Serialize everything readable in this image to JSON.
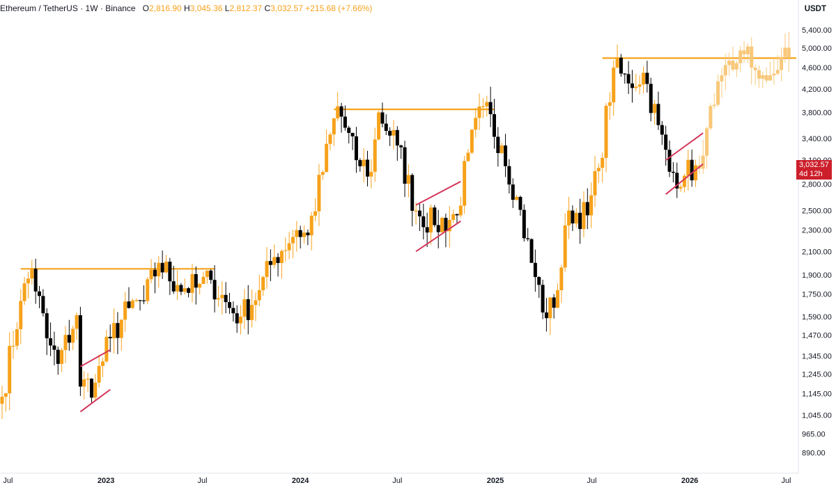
{
  "header": {
    "symbol": "Ethereum / TetherUS",
    "interval": "1W",
    "exchange": "Binance",
    "open_label": "O",
    "open": "2,816.90",
    "high_label": "H",
    "high": "3,045.36",
    "low_label": "L",
    "low": "2,812.37",
    "close_label": "C",
    "close": "3,032.57",
    "change": "+215.68 (+7.66%)"
  },
  "price_tag": {
    "price": "3,032.57",
    "countdown": "4d 12h"
  },
  "colors": {
    "up": "#f7a21b",
    "down": "#000000",
    "projection": "#f8c87a",
    "resistance": "#f7a21b",
    "channel": "#d4365a",
    "price_tag": "#cc1f2b"
  },
  "chart_data": {
    "type": "candlestick",
    "title": "Ethereum / TetherUS · 1W · Binance",
    "ylabel": "USDT",
    "y_scale": "log",
    "ylim": [
      840,
      5750
    ],
    "xlim": [
      "2022-06-20",
      "2026-07-20"
    ],
    "x_ticks": [
      {
        "date": "2022-07-01",
        "label": "Jul"
      },
      {
        "date": "2023-01-01",
        "label": "2023"
      },
      {
        "date": "2023-07-01",
        "label": "Jul"
      },
      {
        "date": "2024-01-01",
        "label": "2024"
      },
      {
        "date": "2024-07-01",
        "label": "Jul"
      },
      {
        "date": "2025-01-01",
        "label": "2025"
      },
      {
        "date": "2025-07-01",
        "label": "Jul"
      },
      {
        "date": "2026-01-01",
        "label": "2026"
      },
      {
        "date": "2026-07-01",
        "label": "Jul"
      }
    ],
    "y_ticks": [
      "5,400.00",
      "5,000.00",
      "4,600.00",
      "4,200.00",
      "3,800.00",
      "3,400.00",
      "3,100.00",
      "2,800.00",
      "2,500.00",
      "2,300.00",
      "2,100.00",
      "1,900.00",
      "1,750.00",
      "1,590.00",
      "1,470.00",
      "1,345.00",
      "1,245.00",
      "1,145.00",
      "1,045.00",
      "965.00",
      "890.00"
    ],
    "last_price": 3032.57,
    "anchors": [
      {
        "date": "2022-06-20",
        "close": 1130
      },
      {
        "date": "2022-07-25",
        "close": 1700
      },
      {
        "date": "2022-08-15",
        "close": 1950
      },
      {
        "date": "2022-09-12",
        "close": 1450
      },
      {
        "date": "2022-10-03",
        "close": 1300
      },
      {
        "date": "2022-11-07",
        "close": 1600
      },
      {
        "date": "2022-11-14",
        "close": 1180
      },
      {
        "date": "2022-12-12",
        "close": 1200
      },
      {
        "date": "2023-01-09",
        "close": 1450
      },
      {
        "date": "2023-02-13",
        "close": 1650
      },
      {
        "date": "2023-03-13",
        "close": 1700
      },
      {
        "date": "2023-04-10",
        "close": 2000
      },
      {
        "date": "2023-05-15",
        "close": 1820
      },
      {
        "date": "2023-06-19",
        "close": 1800
      },
      {
        "date": "2023-07-17",
        "close": 1860
      },
      {
        "date": "2023-08-21",
        "close": 1650
      },
      {
        "date": "2023-09-11",
        "close": 1590
      },
      {
        "date": "2023-10-16",
        "close": 1780
      },
      {
        "date": "2023-11-13",
        "close": 2050
      },
      {
        "date": "2023-12-25",
        "close": 2300
      },
      {
        "date": "2024-01-15",
        "close": 2250
      },
      {
        "date": "2024-03-11",
        "close": 3900
      },
      {
        "date": "2024-04-15",
        "close": 3100
      },
      {
        "date": "2024-05-13",
        "close": 2950
      },
      {
        "date": "2024-05-27",
        "close": 3800
      },
      {
        "date": "2024-07-01",
        "close": 3300
      },
      {
        "date": "2024-08-05",
        "close": 2500
      },
      {
        "date": "2024-09-09",
        "close": 2350
      },
      {
        "date": "2024-10-21",
        "close": 2450
      },
      {
        "date": "2024-11-11",
        "close": 3200
      },
      {
        "date": "2024-12-09",
        "close": 3900
      },
      {
        "date": "2025-01-13",
        "close": 3300
      },
      {
        "date": "2025-02-10",
        "close": 2650
      },
      {
        "date": "2025-03-10",
        "close": 2000
      },
      {
        "date": "2025-04-07",
        "close": 1580
      },
      {
        "date": "2025-04-28",
        "close": 1780
      },
      {
        "date": "2025-05-19",
        "close": 2500
      },
      {
        "date": "2025-06-23",
        "close": 2450
      },
      {
        "date": "2025-07-14",
        "close": 3000
      },
      {
        "date": "2025-08-11",
        "close": 4600
      },
      {
        "date": "2025-09-08",
        "close": 4300
      },
      {
        "date": "2025-10-06",
        "close": 4500
      },
      {
        "date": "2025-11-03",
        "close": 3600
      },
      {
        "date": "2025-11-24",
        "close": 2950
      },
      {
        "date": "2025-12-22",
        "close": 2900
      },
      {
        "date": "2026-01-12",
        "close": 3032.57
      }
    ],
    "projection_anchors": [
      {
        "date": "2026-01-12",
        "close": 3032.57
      },
      {
        "date": "2026-02-02",
        "close": 3550
      },
      {
        "date": "2026-03-02",
        "close": 4450
      },
      {
        "date": "2026-04-06",
        "close": 4950
      },
      {
        "date": "2026-05-04",
        "close": 4550
      },
      {
        "date": "2026-06-01",
        "close": 4450
      },
      {
        "date": "2026-07-06",
        "close": 4800
      }
    ],
    "resistance_lines": [
      {
        "start": "2022-07-25",
        "end": "2023-07-24",
        "price": 1950
      },
      {
        "start": "2024-03-04",
        "end": "2024-12-30",
        "price": 3850
      },
      {
        "start": "2025-07-21",
        "end": "2026-07-20",
        "price": 4790
      }
    ],
    "channels": [
      {
        "start": "2022-11-14",
        "end": "2023-01-09",
        "upper": [
          1285,
          1380
        ],
        "lower": [
          1060,
          1165
        ]
      },
      {
        "start": "2024-08-05",
        "end": "2024-10-28",
        "upper": [
          2560,
          2830
        ],
        "lower": [
          2100,
          2390
        ]
      },
      {
        "start": "2025-11-17",
        "end": "2026-01-26",
        "upper": [
          3100,
          3480
        ],
        "lower": [
          2680,
          3050
        ]
      }
    ]
  }
}
